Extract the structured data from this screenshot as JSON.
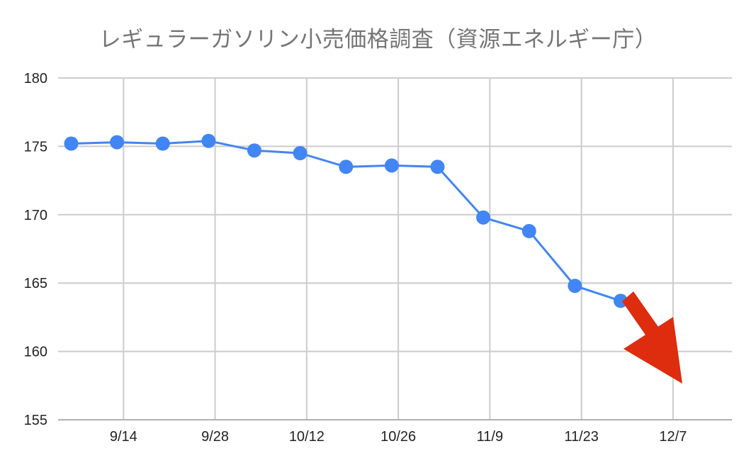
{
  "chart_data": {
    "type": "line",
    "title": "レギュラーガソリン小売価格調査（資源エネルギー庁）",
    "xlabel": "",
    "ylabel": "",
    "x_tick_labels": [
      "9/14",
      "9/28",
      "10/12",
      "10/26",
      "11/9",
      "11/23",
      "12/7"
    ],
    "x_tick_dates": [
      "2021-09-14",
      "2021-09-28",
      "2021-10-12",
      "2021-10-26",
      "2021-11-09",
      "2021-11-23",
      "2021-12-07"
    ],
    "xlim": [
      "2021-09-04",
      "2021-12-16"
    ],
    "ylim": [
      155,
      180
    ],
    "y_ticks": [
      155,
      160,
      165,
      170,
      175,
      180
    ],
    "grid": true,
    "series": [
      {
        "color": "#4285f4",
        "points": [
          {
            "x": "2021-09-06",
            "y": 175.2
          },
          {
            "x": "2021-09-13",
            "y": 175.3
          },
          {
            "x": "2021-09-20",
            "y": 175.2
          },
          {
            "x": "2021-09-27",
            "y": 175.4
          },
          {
            "x": "2021-10-04",
            "y": 174.7
          },
          {
            "x": "2021-10-11",
            "y": 174.5
          },
          {
            "x": "2021-10-18",
            "y": 173.5
          },
          {
            "x": "2021-10-25",
            "y": 173.6
          },
          {
            "x": "2021-11-01",
            "y": 173.5
          },
          {
            "x": "2021-11-08",
            "y": 169.8
          },
          {
            "x": "2021-11-15",
            "y": 168.8
          },
          {
            "x": "2021-11-22",
            "y": 164.8
          },
          {
            "x": "2021-11-29",
            "y": 163.7
          }
        ]
      }
    ],
    "annotation": {
      "shape": "arrow",
      "direction": "down-right",
      "color": "#dd2c0e"
    }
  }
}
